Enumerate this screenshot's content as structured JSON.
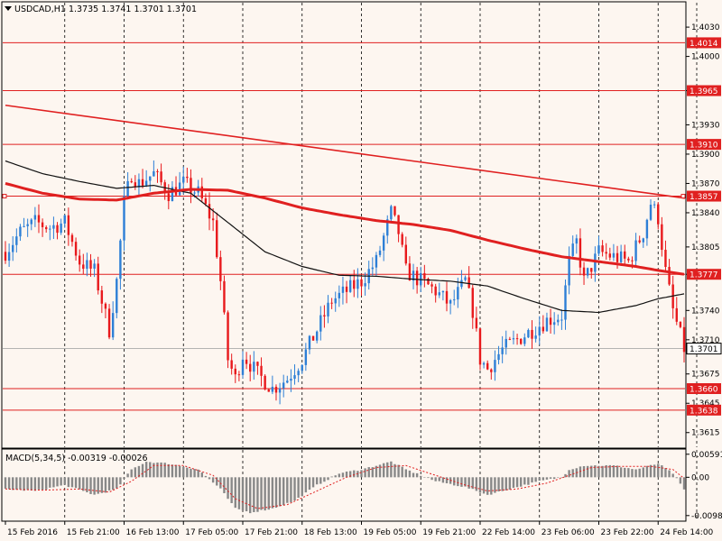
{
  "chart_data": {
    "type": "candlestick",
    "symbol_header": "USDCAD,H1  1.3735 1.3741 1.3701 1.3701",
    "price_axis": {
      "ylim": [
        1.36,
        1.4055
      ],
      "ticks": [
        "1.4030",
        "1.4000",
        "1.3965",
        "1.3930",
        "1.3900",
        "1.3870",
        "1.3840",
        "1.3805",
        "1.3777",
        "1.3740",
        "1.3710",
        "1.3675",
        "1.3645",
        "1.3615"
      ],
      "tick_values": [
        1.403,
        1.4,
        1.3965,
        1.393,
        1.39,
        1.387,
        1.384,
        1.3805,
        1.3777,
        1.374,
        1.371,
        1.3675,
        1.3645,
        1.3615
      ]
    },
    "horizontal_levels": [
      {
        "label": "1.4014",
        "value": 1.4014
      },
      {
        "label": "1.3965",
        "value": 1.3965
      },
      {
        "label": "1.3910",
        "value": 1.391
      },
      {
        "label": "1.3857",
        "value": 1.3857
      },
      {
        "label": "1.3777",
        "value": 1.3777
      },
      {
        "label": "1.3660",
        "value": 1.366
      },
      {
        "label": "1.3638",
        "value": 1.3638
      }
    ],
    "current_price": {
      "label": "1.3701",
      "value": 1.3701
    },
    "time_axis": {
      "labels": [
        "15 Feb 2016",
        "15 Feb 21:00",
        "16 Feb 13:00",
        "17 Feb 05:00",
        "17 Feb 21:00",
        "18 Feb 13:00",
        "19 Feb 05:00",
        "19 Feb 21:00",
        "22 Feb 14:00",
        "23 Feb 06:00",
        "23 Feb 22:00",
        "24 Feb 14:00"
      ],
      "label_bar_index": [
        0,
        16,
        32,
        48,
        64,
        80,
        96,
        112,
        128,
        144,
        160,
        176
      ]
    },
    "bar_count": 184,
    "close_anchors": [
      [
        0,
        1.38
      ],
      [
        4,
        1.382
      ],
      [
        8,
        1.383
      ],
      [
        12,
        1.3825
      ],
      [
        16,
        1.383
      ],
      [
        20,
        1.379
      ],
      [
        24,
        1.378
      ],
      [
        28,
        1.372
      ],
      [
        30,
        1.377
      ],
      [
        32,
        1.385
      ],
      [
        34,
        1.388
      ],
      [
        36,
        1.387
      ],
      [
        40,
        1.388
      ],
      [
        44,
        1.386
      ],
      [
        48,
        1.387
      ],
      [
        52,
        1.386
      ],
      [
        56,
        1.383
      ],
      [
        58,
        1.377
      ],
      [
        60,
        1.369
      ],
      [
        62,
        1.367
      ],
      [
        64,
        1.3695
      ],
      [
        68,
        1.3675
      ],
      [
        72,
        1.366
      ],
      [
        76,
        1.367
      ],
      [
        80,
        1.369
      ],
      [
        84,
        1.372
      ],
      [
        88,
        1.375
      ],
      [
        92,
        1.376
      ],
      [
        96,
        1.377
      ],
      [
        100,
        1.379
      ],
      [
        104,
        1.384
      ],
      [
        106,
        1.382
      ],
      [
        108,
        1.378
      ],
      [
        112,
        1.377
      ],
      [
        116,
        1.376
      ],
      [
        120,
        1.3745
      ],
      [
        124,
        1.377
      ],
      [
        126,
        1.374
      ],
      [
        128,
        1.369
      ],
      [
        130,
        1.368
      ],
      [
        134,
        1.37
      ],
      [
        138,
        1.371
      ],
      [
        142,
        1.372
      ],
      [
        146,
        1.373
      ],
      [
        150,
        1.3735
      ],
      [
        152,
        1.379
      ],
      [
        154,
        1.381
      ],
      [
        156,
        1.377
      ],
      [
        160,
        1.38
      ],
      [
        164,
        1.3795
      ],
      [
        168,
        1.379
      ],
      [
        172,
        1.382
      ],
      [
        174,
        1.385
      ],
      [
        176,
        1.3835
      ],
      [
        178,
        1.378
      ],
      [
        180,
        1.374
      ],
      [
        183,
        1.3701
      ]
    ],
    "ma_black_anchors": [
      [
        0,
        1.3893
      ],
      [
        10,
        1.388
      ],
      [
        20,
        1.3872
      ],
      [
        30,
        1.3865
      ],
      [
        40,
        1.3868
      ],
      [
        50,
        1.386
      ],
      [
        60,
        1.383
      ],
      [
        70,
        1.38
      ],
      [
        80,
        1.3785
      ],
      [
        90,
        1.3776
      ],
      [
        100,
        1.3775
      ],
      [
        110,
        1.3772
      ],
      [
        120,
        1.377
      ],
      [
        130,
        1.3765
      ],
      [
        140,
        1.3752
      ],
      [
        150,
        1.374
      ],
      [
        160,
        1.3738
      ],
      [
        170,
        1.3745
      ],
      [
        176,
        1.3752
      ],
      [
        183,
        1.3757
      ]
    ],
    "ma_red_anchors": [
      [
        0,
        1.387
      ],
      [
        10,
        1.386
      ],
      [
        20,
        1.3854
      ],
      [
        30,
        1.3853
      ],
      [
        40,
        1.386
      ],
      [
        50,
        1.3864
      ],
      [
        60,
        1.3863
      ],
      [
        70,
        1.3855
      ],
      [
        80,
        1.3845
      ],
      [
        90,
        1.3838
      ],
      [
        100,
        1.3832
      ],
      [
        110,
        1.3828
      ],
      [
        120,
        1.3822
      ],
      [
        130,
        1.3812
      ],
      [
        140,
        1.3803
      ],
      [
        150,
        1.3795
      ],
      [
        160,
        1.379
      ],
      [
        170,
        1.3785
      ],
      [
        176,
        1.3781
      ],
      [
        183,
        1.3777
      ]
    ],
    "trendline": {
      "start": [
        0,
        1.395
      ],
      "end": [
        183,
        1.3855
      ]
    },
    "macd": {
      "header": "MACD(5,34,5) -0.00319 -0.00026",
      "ylim": [
        -0.011,
        0.007
      ],
      "ticks": [
        "0.00591",
        "0.00",
        "-0.0098"
      ],
      "tick_values": [
        0.0059,
        0.0,
        -0.0098
      ],
      "hist_anchors": [
        [
          0,
          -0.003
        ],
        [
          8,
          -0.0035
        ],
        [
          16,
          -0.002
        ],
        [
          24,
          -0.0045
        ],
        [
          30,
          -0.003
        ],
        [
          34,
          0.002
        ],
        [
          38,
          0.004
        ],
        [
          44,
          0.0035
        ],
        [
          52,
          0.002
        ],
        [
          58,
          -0.003
        ],
        [
          62,
          -0.008
        ],
        [
          66,
          -0.009
        ],
        [
          72,
          -0.008
        ],
        [
          78,
          -0.006
        ],
        [
          84,
          -0.002
        ],
        [
          90,
          0.001
        ],
        [
          96,
          0.002
        ],
        [
          104,
          0.004
        ],
        [
          108,
          0.002
        ],
        [
          116,
          -0.001
        ],
        [
          124,
          -0.0025
        ],
        [
          130,
          -0.0045
        ],
        [
          136,
          -0.003
        ],
        [
          144,
          -0.001
        ],
        [
          150,
          0.0
        ],
        [
          152,
          0.002
        ],
        [
          156,
          0.003
        ],
        [
          164,
          0.003
        ],
        [
          170,
          0.002
        ],
        [
          176,
          0.0035
        ],
        [
          180,
          0.001
        ],
        [
          183,
          -0.0032
        ]
      ],
      "signal_anchors": [
        [
          0,
          -0.003
        ],
        [
          10,
          -0.0033
        ],
        [
          20,
          -0.003
        ],
        [
          28,
          -0.0038
        ],
        [
          34,
          -0.001
        ],
        [
          40,
          0.003
        ],
        [
          48,
          0.003
        ],
        [
          56,
          0.0005
        ],
        [
          62,
          -0.0055
        ],
        [
          68,
          -0.008
        ],
        [
          76,
          -0.007
        ],
        [
          84,
          -0.0035
        ],
        [
          92,
          0.0
        ],
        [
          100,
          0.0025
        ],
        [
          108,
          0.003
        ],
        [
          116,
          0.0005
        ],
        [
          124,
          -0.002
        ],
        [
          130,
          -0.0035
        ],
        [
          138,
          -0.003
        ],
        [
          146,
          -0.0015
        ],
        [
          152,
          0.0005
        ],
        [
          158,
          0.0025
        ],
        [
          166,
          0.0028
        ],
        [
          174,
          0.0028
        ],
        [
          180,
          0.002
        ],
        [
          183,
          -0.0003
        ]
      ]
    },
    "colors": {
      "background": "#fdf6f0",
      "bull": "#2d7fd6",
      "bear": "#e8191c",
      "level": "#e02020",
      "ma_red": "#e02020",
      "ma_black": "#111111",
      "grid": "#000000",
      "hist": "#888888",
      "signal": "#e02020",
      "current_tag": "#ffffff"
    }
  }
}
